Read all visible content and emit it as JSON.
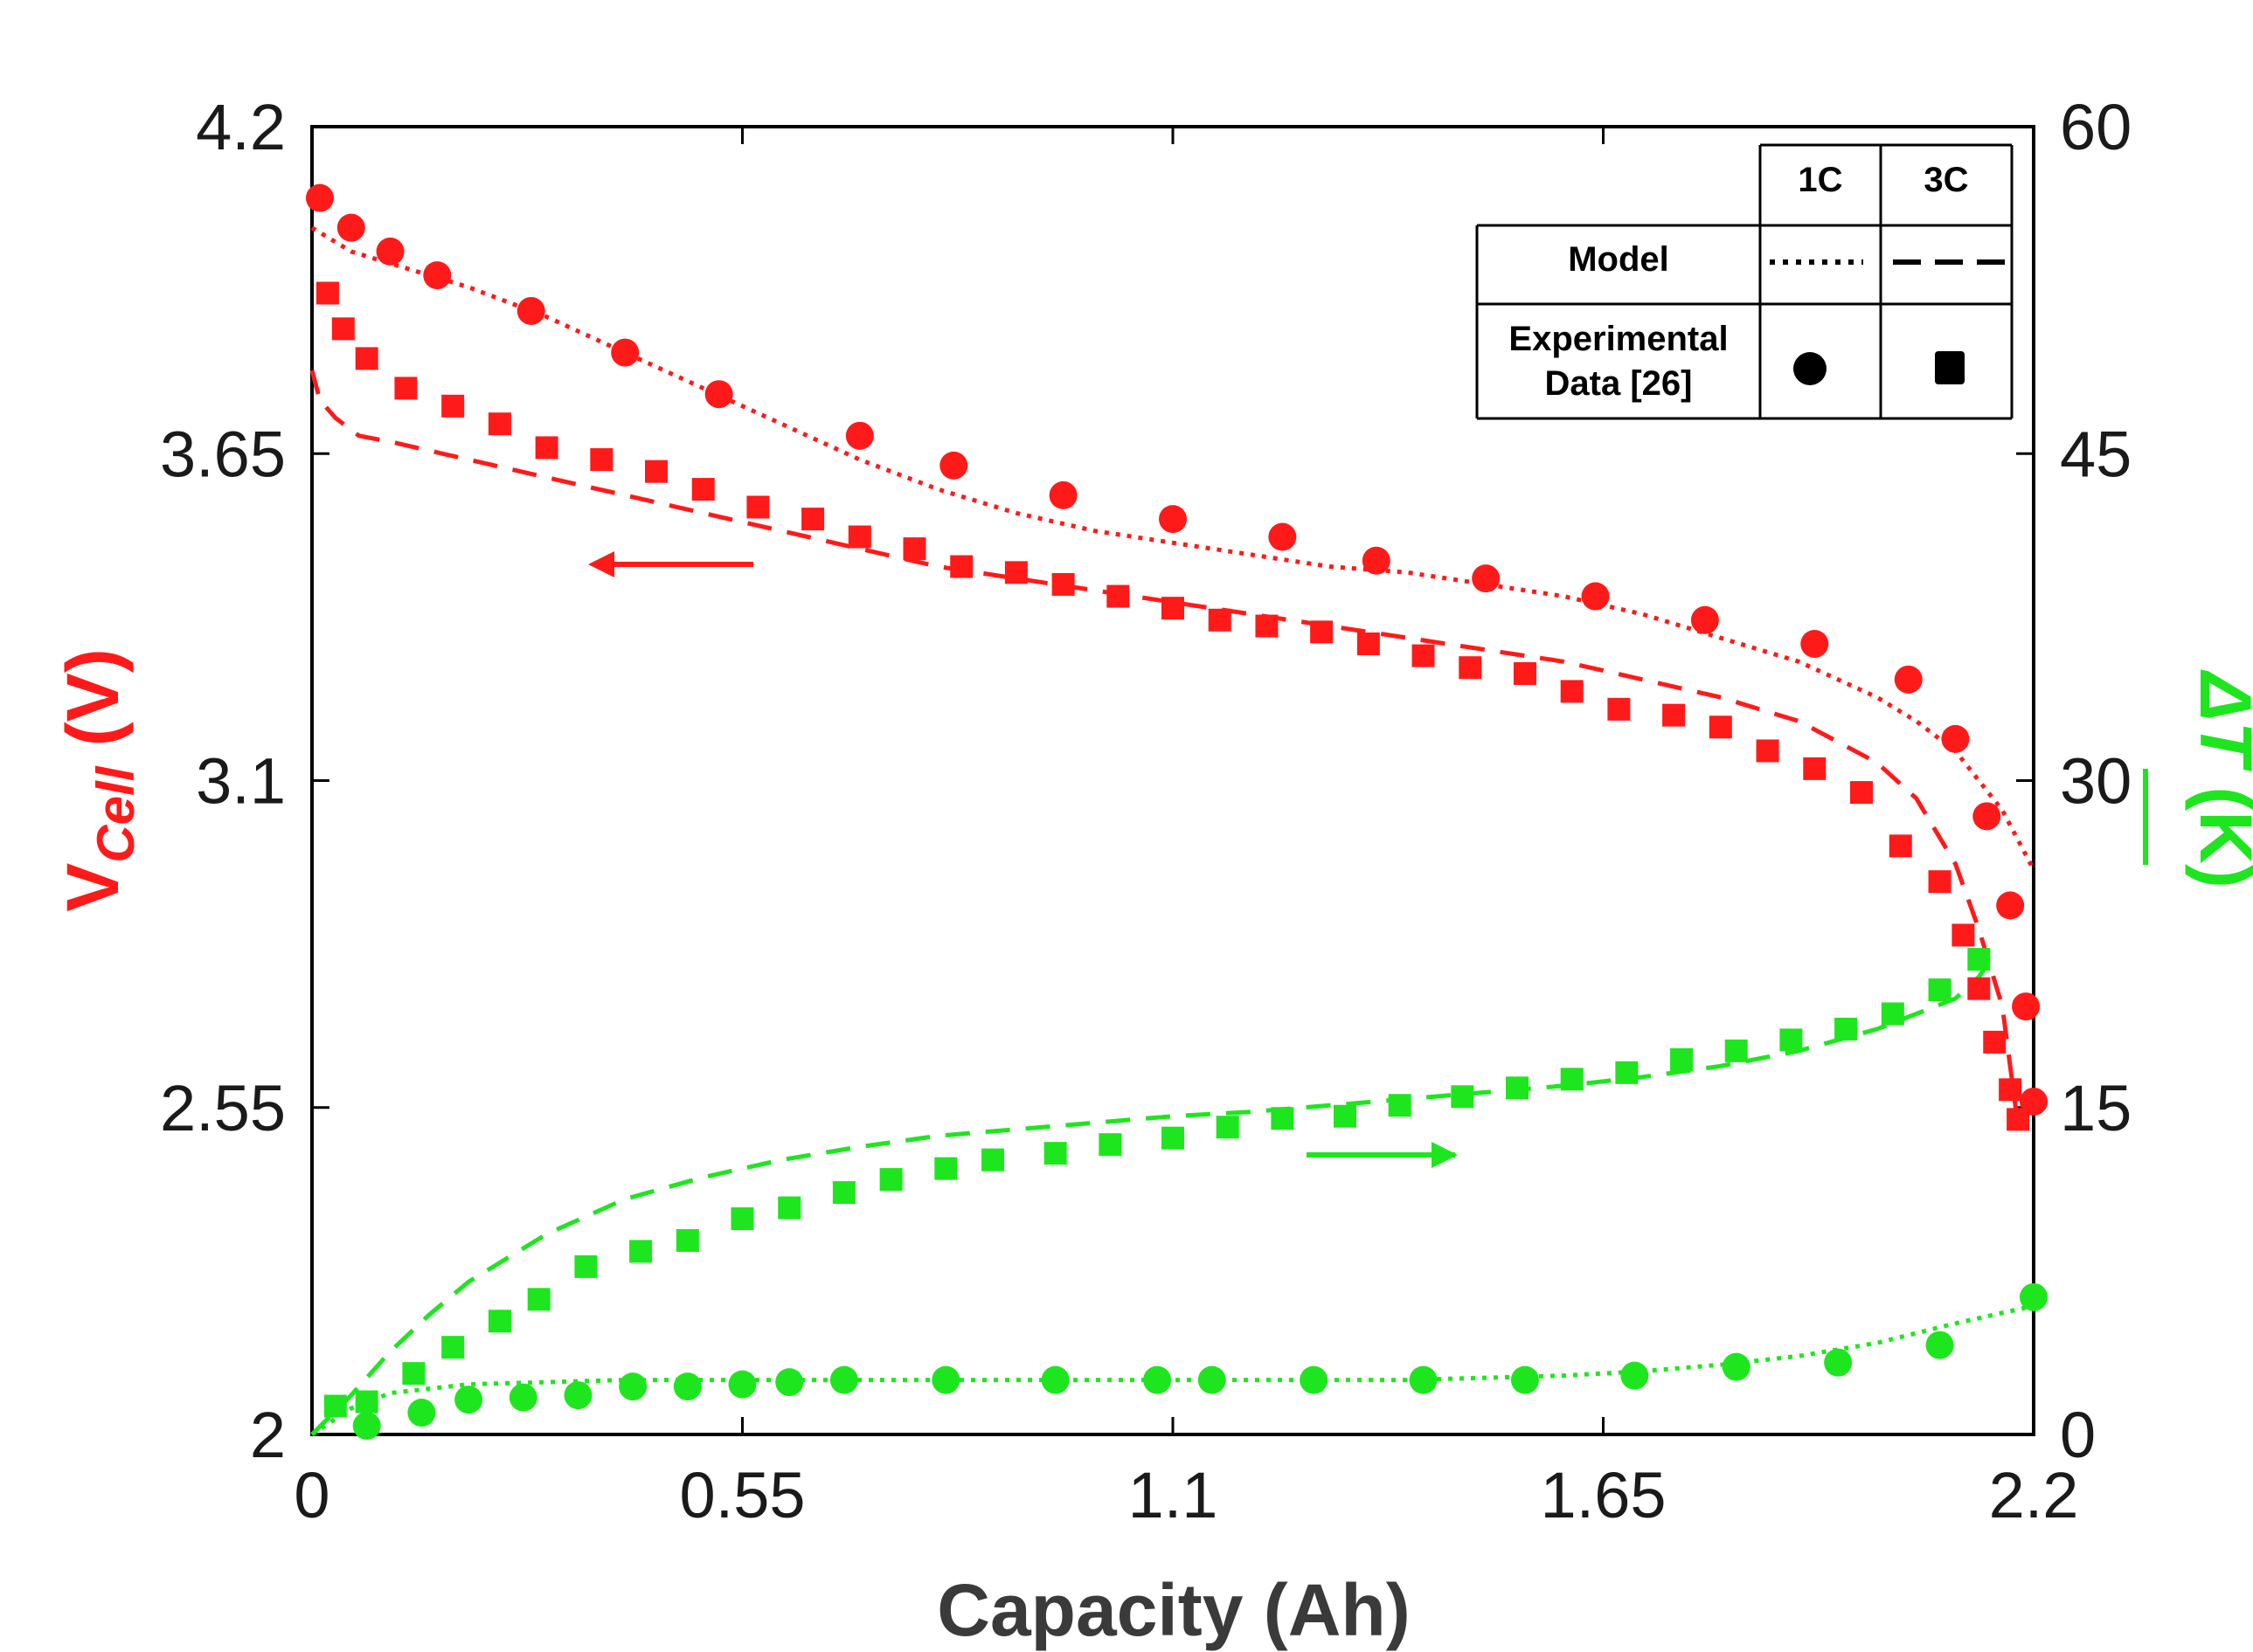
{
  "chart_data": {
    "type": "line",
    "xlabel": "Capacity (Ah)",
    "x_ticks": [
      "0",
      "0.55",
      "1.1",
      "1.65",
      "2.2"
    ],
    "xlim": [
      0,
      2.2
    ],
    "y_left": {
      "label_main": "V",
      "label_sub": "Cell",
      "label_unit": " (V)",
      "ylim": [
        2,
        4.2
      ],
      "ticks": [
        "2",
        "2.55",
        "3.1",
        "3.65",
        "4.2"
      ],
      "color": "#ff1a1a"
    },
    "y_right": {
      "label_main": "ΔT",
      "label_unit": " (K)",
      "ylim": [
        0,
        60
      ],
      "ticks": [
        "0",
        "15",
        "30",
        "45",
        "60"
      ],
      "color": "#1ee61e"
    },
    "legend": {
      "col_1c": "1C",
      "col_3c": "3C",
      "row_model": "Model",
      "row_exp_line1": "Experimental",
      "row_exp_line2": "Data [26]"
    },
    "series": [
      {
        "name": "Voltage 1C Model",
        "axis": "left",
        "style": "dotted",
        "color": "#ff1a1a",
        "x": [
          0,
          0.05,
          0.1,
          0.2,
          0.3,
          0.4,
          0.5,
          0.6,
          0.7,
          0.8,
          0.9,
          1.0,
          1.1,
          1.2,
          1.3,
          1.4,
          1.5,
          1.6,
          1.7,
          1.8,
          1.9,
          2.0,
          2.05,
          2.1,
          2.13,
          2.16,
          2.2
        ],
        "y": [
          4.03,
          3.99,
          3.97,
          3.93,
          3.88,
          3.82,
          3.76,
          3.7,
          3.64,
          3.59,
          3.55,
          3.52,
          3.5,
          3.48,
          3.46,
          3.45,
          3.43,
          3.41,
          3.38,
          3.34,
          3.3,
          3.24,
          3.2,
          3.15,
          3.1,
          3.05,
          2.95
        ]
      },
      {
        "name": "Voltage 3C Model",
        "axis": "left",
        "style": "dashed",
        "color": "#ff1a1a",
        "x": [
          0,
          0.01,
          0.03,
          0.06,
          0.1,
          0.2,
          0.3,
          0.4,
          0.5,
          0.6,
          0.7,
          0.8,
          0.9,
          1.0,
          1.1,
          1.2,
          1.3,
          1.4,
          1.5,
          1.6,
          1.7,
          1.8,
          1.9,
          2.0,
          2.05,
          2.1,
          2.13,
          2.16,
          2.17,
          2.18
        ],
        "y": [
          3.79,
          3.74,
          3.71,
          3.68,
          3.67,
          3.64,
          3.61,
          3.58,
          3.55,
          3.52,
          3.49,
          3.46,
          3.44,
          3.42,
          3.4,
          3.38,
          3.36,
          3.34,
          3.32,
          3.3,
          3.27,
          3.24,
          3.2,
          3.13,
          3.07,
          2.96,
          2.85,
          2.72,
          2.62,
          2.52
        ]
      },
      {
        "name": "Voltage 1C Experimental",
        "axis": "left",
        "marker": "circle",
        "color": "#ff1a1a",
        "x": [
          0.01,
          0.05,
          0.1,
          0.16,
          0.28,
          0.4,
          0.52,
          0.7,
          0.82,
          0.96,
          1.1,
          1.24,
          1.36,
          1.5,
          1.64,
          1.78,
          1.92,
          2.04,
          2.1,
          2.14,
          2.17,
          2.19,
          2.2
        ],
        "y": [
          4.08,
          4.03,
          3.99,
          3.95,
          3.89,
          3.82,
          3.75,
          3.68,
          3.63,
          3.58,
          3.54,
          3.51,
          3.47,
          3.44,
          3.41,
          3.37,
          3.33,
          3.27,
          3.17,
          3.04,
          2.89,
          2.72,
          2.56
        ]
      },
      {
        "name": "Voltage 3C Experimental",
        "axis": "left",
        "marker": "square",
        "color": "#ff1a1a",
        "x": [
          0.02,
          0.04,
          0.07,
          0.12,
          0.18,
          0.24,
          0.3,
          0.37,
          0.44,
          0.5,
          0.57,
          0.64,
          0.7,
          0.77,
          0.83,
          0.9,
          0.96,
          1.03,
          1.1,
          1.16,
          1.22,
          1.29,
          1.35,
          1.42,
          1.48,
          1.55,
          1.61,
          1.67,
          1.74,
          1.8,
          1.86,
          1.92,
          1.98,
          2.03,
          2.08,
          2.11,
          2.13,
          2.15,
          2.17,
          2.18
        ],
        "y": [
          3.92,
          3.86,
          3.81,
          3.76,
          3.73,
          3.7,
          3.66,
          3.64,
          3.62,
          3.59,
          3.56,
          3.54,
          3.51,
          3.49,
          3.46,
          3.45,
          3.43,
          3.41,
          3.39,
          3.37,
          3.36,
          3.35,
          3.33,
          3.31,
          3.29,
          3.28,
          3.25,
          3.22,
          3.21,
          3.19,
          3.15,
          3.12,
          3.08,
          2.99,
          2.93,
          2.84,
          2.75,
          2.66,
          2.58,
          2.53
        ]
      },
      {
        "name": "Temperature 3C Model",
        "axis": "right",
        "style": "dashed",
        "color": "#1ee61e",
        "x": [
          0,
          0.05,
          0.1,
          0.15,
          0.2,
          0.3,
          0.4,
          0.5,
          0.6,
          0.7,
          0.8,
          0.9,
          1.0,
          1.1,
          1.2,
          1.3,
          1.4,
          1.5,
          1.6,
          1.7,
          1.8,
          1.9,
          2.0,
          2.05,
          2.1,
          2.13,
          2.15
        ],
        "y": [
          0,
          1.8,
          3.8,
          5.5,
          7,
          9.2,
          10.8,
          11.8,
          12.6,
          13.2,
          13.7,
          14,
          14.3,
          14.6,
          14.8,
          15.1,
          15.4,
          15.7,
          16,
          16.4,
          16.9,
          17.6,
          18.6,
          19.3,
          20,
          21,
          22
        ]
      },
      {
        "name": "Temperature 1C Model",
        "axis": "right",
        "style": "dotted",
        "color": "#1ee61e",
        "x": [
          0,
          0.05,
          0.1,
          0.2,
          0.3,
          0.4,
          0.5,
          0.6,
          0.7,
          0.8,
          0.9,
          1.0,
          1.1,
          1.2,
          1.3,
          1.4,
          1.5,
          1.6,
          1.7,
          1.8,
          1.9,
          2.0,
          2.1,
          2.2
        ],
        "y": [
          0,
          1.2,
          1.9,
          2.3,
          2.4,
          2.5,
          2.5,
          2.5,
          2.5,
          2.5,
          2.5,
          2.5,
          2.5,
          2.5,
          2.5,
          2.5,
          2.6,
          2.7,
          2.9,
          3.2,
          3.6,
          4.2,
          5.1,
          5.9
        ]
      },
      {
        "name": "Temperature 1C Experimental",
        "axis": "right",
        "marker": "circle",
        "color": "#1ee61e",
        "x": [
          0.07,
          0.14,
          0.2,
          0.27,
          0.34,
          0.41,
          0.48,
          0.55,
          0.61,
          0.68,
          0.81,
          0.95,
          1.08,
          1.15,
          1.28,
          1.42,
          1.55,
          1.69,
          1.82,
          1.95,
          2.08,
          2.2
        ],
        "y": [
          0.4,
          1,
          1.6,
          1.7,
          1.8,
          2.2,
          2.2,
          2.3,
          2.4,
          2.5,
          2.5,
          2.5,
          2.5,
          2.5,
          2.5,
          2.5,
          2.5,
          2.7,
          3.1,
          3.3,
          4.1,
          6.3
        ]
      },
      {
        "name": "Temperature 3C Experimental",
        "axis": "right",
        "marker": "square",
        "color": "#1ee61e",
        "x": [
          0.03,
          0.07,
          0.13,
          0.18,
          0.24,
          0.29,
          0.35,
          0.42,
          0.48,
          0.55,
          0.61,
          0.68,
          0.74,
          0.81,
          0.87,
          0.95,
          1.02,
          1.1,
          1.17,
          1.24,
          1.32,
          1.39,
          1.47,
          1.54,
          1.61,
          1.68,
          1.75,
          1.82,
          1.89,
          1.96,
          2.02,
          2.08,
          2.13
        ],
        "y": [
          1.3,
          1.5,
          2.8,
          4,
          5.2,
          6.2,
          7.7,
          8.4,
          8.9,
          9.9,
          10.4,
          11.1,
          11.7,
          12.2,
          12.6,
          12.9,
          13.3,
          13.6,
          14.1,
          14.5,
          14.6,
          15.1,
          15.5,
          15.9,
          16.3,
          16.6,
          17.2,
          17.6,
          18.1,
          18.6,
          19.3,
          20.4,
          21.8
        ]
      }
    ],
    "annotations": [
      {
        "type": "arrow",
        "direction": "left",
        "color": "#ff1a1a",
        "meaning": "points to left axis"
      },
      {
        "type": "arrow",
        "direction": "right",
        "color": "#1ee61e",
        "meaning": "points to right axis"
      }
    ]
  }
}
